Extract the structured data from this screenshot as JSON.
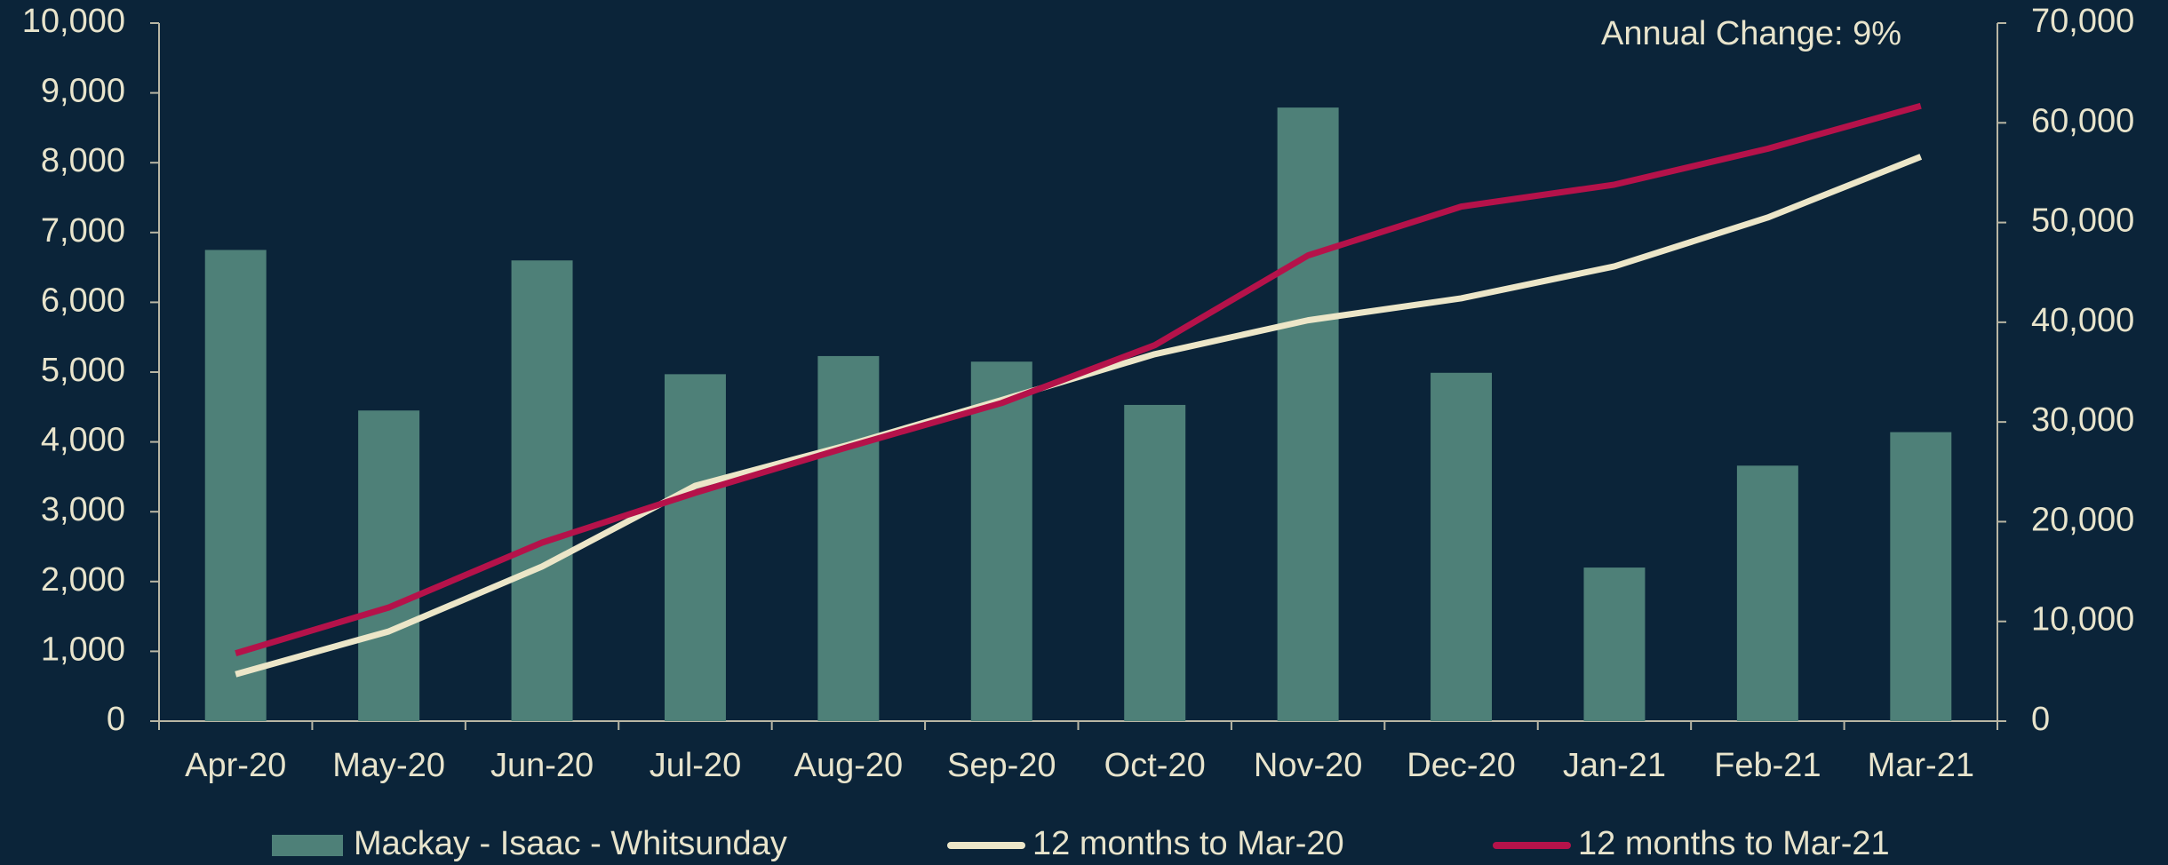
{
  "chart_data": {
    "type": "bar_line",
    "annotation": "Annual Change:  9%",
    "categories": [
      "Apr-20",
      "May-20",
      "Jun-20",
      "Jul-20",
      "Aug-20",
      "Sep-20",
      "Oct-20",
      "Nov-20",
      "Dec-20",
      "Jan-21",
      "Feb-21",
      "Mar-21"
    ],
    "series": [
      {
        "name": "Mackay - Isaac - Whitsunday",
        "type": "bar",
        "color": "#4e8078",
        "values": [
          6750,
          4450,
          6600,
          4970,
          5230,
          5150,
          4530,
          8790,
          4990,
          2200,
          3660,
          4140
        ]
      },
      {
        "name": "12 months to Mar-20",
        "type": "line",
        "axis": "y2",
        "color": "#ece6c8",
        "values": [
          4700,
          9000,
          15500,
          23600,
          27700,
          32200,
          36800,
          40200,
          42400,
          45600,
          50500,
          56600
        ]
      },
      {
        "name": "12 months to Mar-21",
        "type": "line",
        "axis": "y2",
        "color": "#b5124a",
        "values": [
          6800,
          11400,
          17900,
          22900,
          27500,
          31900,
          37700,
          46700,
          51600,
          53800,
          57400,
          61700
        ]
      }
    ],
    "ylim": [
      0,
      10000
    ],
    "yticks": [
      0,
      {
        "value": 1000,
        "label": "1,000"
      },
      {
        "value": 2000,
        "label": "2,000"
      },
      {
        "value": 3000,
        "label": "3,000"
      },
      {
        "value": 4000,
        "label": "4,000"
      },
      {
        "value": 5000,
        "label": "5,000"
      },
      {
        "value": 6000,
        "label": "6,000"
      },
      {
        "value": 7000,
        "label": "7,000"
      },
      {
        "value": 8000,
        "label": "8,000"
      },
      {
        "value": 9000,
        "label": "9,000"
      },
      {
        "value": 10000,
        "label": "10,000"
      }
    ],
    "y2lim": [
      0,
      70000
    ],
    "y2ticks": [
      0,
      {
        "value": 10000,
        "label": "10,000"
      },
      {
        "value": 20000,
        "label": "20,000"
      },
      {
        "value": 30000,
        "label": "30,000"
      },
      {
        "value": 40000,
        "label": "40,000"
      },
      {
        "value": 50000,
        "label": "50,000"
      },
      {
        "value": 60000,
        "label": "60,000"
      },
      {
        "value": 70000,
        "label": "70,000"
      }
    ],
    "grid": false
  }
}
